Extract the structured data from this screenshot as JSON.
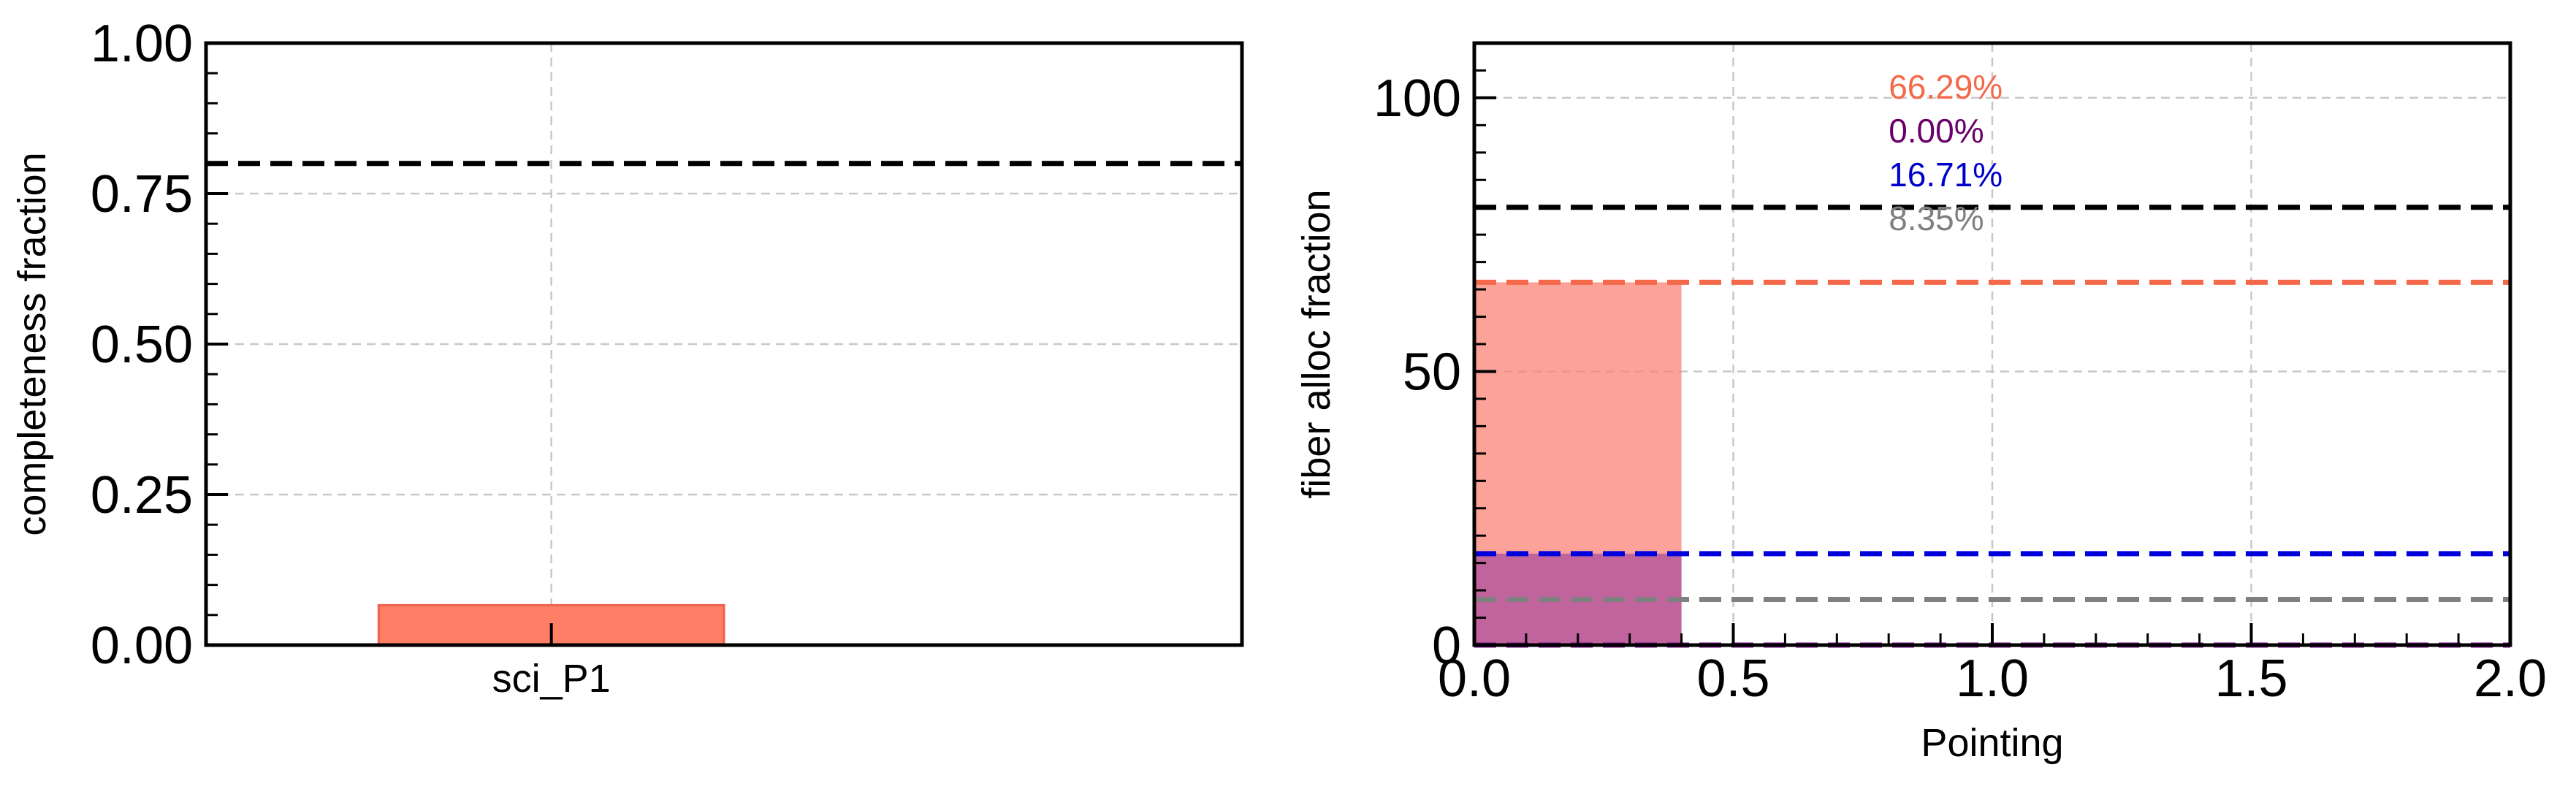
{
  "chart_data": [
    {
      "type": "bar",
      "categories": [
        "sci_P1"
      ],
      "series": [
        {
          "values": [
            0.0663
          ],
          "color": "#ff7f66"
        }
      ],
      "ylabel": "completeness fraction",
      "xlabel": "",
      "ylim": [
        0.0,
        1.0
      ],
      "yticks": [
        "0.00",
        "0.25",
        "0.50",
        "0.75",
        "1.00"
      ],
      "ytick_values": [
        0.0,
        0.25,
        0.5,
        0.75,
        1.0
      ],
      "reference_lines": [
        {
          "y": 0.8,
          "color": "#000000",
          "style": "dashed"
        }
      ],
      "grid": true
    },
    {
      "type": "bar",
      "xlabel": "Pointing",
      "ylabel": "fiber alloc fraction",
      "xlim": [
        0.0,
        2.0
      ],
      "ylim": [
        0,
        110
      ],
      "xticks": [
        "0.0",
        "0.5",
        "1.0",
        "1.5",
        "2.0"
      ],
      "xtick_values": [
        0.0,
        0.5,
        1.0,
        1.5,
        2.0
      ],
      "yticks": [
        "0",
        "50",
        "100"
      ],
      "ytick_values": [
        0,
        50,
        100
      ],
      "grid": true,
      "bars": [
        {
          "x_start": 0.0,
          "x_end": 0.4,
          "value": 66.29,
          "color": "#fa8072",
          "opacity": 0.72
        },
        {
          "x_start": 0.0,
          "x_end": 0.4,
          "value": 16.71,
          "color": "#9b3aa0",
          "opacity": 0.6
        }
      ],
      "reference_lines": [
        {
          "y": 80,
          "color": "#000000",
          "style": "dashed"
        },
        {
          "y": 66.29,
          "color": "#f4694a",
          "style": "dashed"
        },
        {
          "y": 16.71,
          "color": "#0000dd",
          "style": "dashed"
        },
        {
          "y": 8.35,
          "color": "#808080",
          "style": "dashed"
        },
        {
          "y": 0.0,
          "color": "#7b0f8f",
          "style": "dashed"
        }
      ],
      "annotations": [
        {
          "text": "66.29%",
          "color": "#f4694a"
        },
        {
          "text": "0.00%",
          "color": "#6a006a"
        },
        {
          "text": "16.71%",
          "color": "#0000cc"
        },
        {
          "text": "8.35%",
          "color": "#808080"
        }
      ]
    }
  ]
}
